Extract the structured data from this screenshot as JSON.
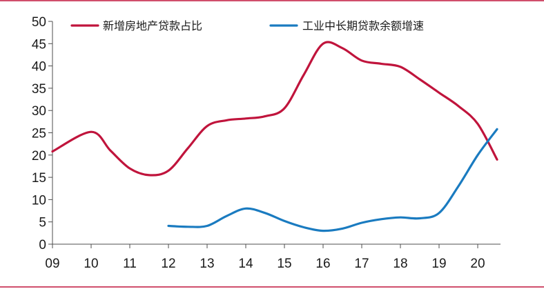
{
  "chart_data": {
    "type": "line",
    "title": "",
    "xlabel": "",
    "ylabel": "",
    "x_tick_labels": [
      "09",
      "10",
      "11",
      "12",
      "13",
      "14",
      "15",
      "16",
      "17",
      "18",
      "19",
      "20"
    ],
    "ylim": [
      0,
      50
    ],
    "y_ticks": [
      0,
      5,
      10,
      15,
      20,
      25,
      30,
      35,
      40,
      45,
      50
    ],
    "grid": false,
    "legend_position": "top",
    "series": [
      {
        "name": "新增房地产贷款占比",
        "color": "#c0143c",
        "x": [
          2009.0,
          2010.0,
          2010.5,
          2011.0,
          2011.5,
          2012.0,
          2012.5,
          2013.0,
          2013.5,
          2014.0,
          2014.5,
          2015.0,
          2015.5,
          2016.0,
          2016.5,
          2017.0,
          2017.5,
          2018.0,
          2018.5,
          2019.0,
          2019.5,
          2020.0,
          2020.5
        ],
        "values": [
          20.8,
          25.2,
          21.0,
          17.0,
          15.5,
          16.5,
          21.5,
          26.5,
          27.8,
          28.2,
          28.7,
          30.5,
          38.0,
          45.0,
          44.0,
          41.2,
          40.5,
          39.8,
          37.0,
          34.0,
          31.0,
          27.0,
          19.0
        ]
      },
      {
        "name": "工业中长期贷款余额增速",
        "color": "#1a7bc0",
        "x": [
          2012.0,
          2012.5,
          2013.0,
          2013.5,
          2014.0,
          2014.5,
          2015.0,
          2015.5,
          2016.0,
          2016.5,
          2017.0,
          2017.5,
          2018.0,
          2018.5,
          2019.0,
          2019.5,
          2020.0,
          2020.5
        ],
        "values": [
          4.1,
          3.9,
          4.1,
          6.3,
          8.0,
          7.0,
          5.2,
          3.8,
          3.0,
          3.5,
          4.8,
          5.6,
          6.0,
          5.8,
          7.0,
          13.0,
          20.0,
          25.8
        ]
      }
    ]
  }
}
